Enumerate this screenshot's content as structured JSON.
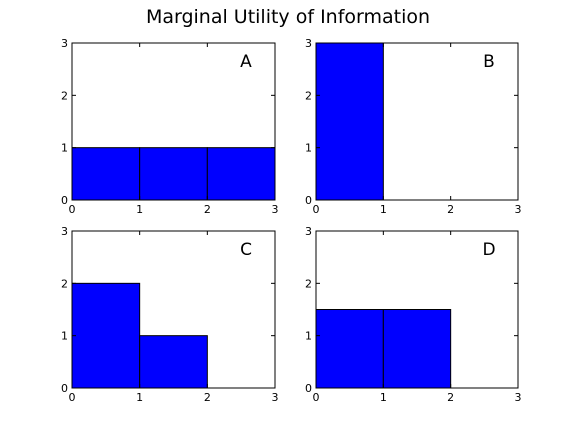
{
  "figure": {
    "title": "Marginal Utility of Information",
    "bar_color": "#0000ff",
    "edge_color": "#000000"
  },
  "chart_data": [
    {
      "type": "bar",
      "panel": "A",
      "bins": [
        [
          0,
          1
        ],
        [
          1,
          2
        ],
        [
          2,
          3
        ]
      ],
      "values": [
        1,
        1,
        1
      ],
      "xlim": [
        0,
        3
      ],
      "ylim": [
        0,
        3
      ],
      "xticks": [
        "0",
        "1",
        "2",
        "3"
      ],
      "yticks": [
        "0",
        "1",
        "2",
        "3"
      ],
      "grid": false
    },
    {
      "type": "bar",
      "panel": "B",
      "bins": [
        [
          0,
          1
        ],
        [
          1,
          2
        ],
        [
          2,
          3
        ]
      ],
      "values": [
        3,
        0,
        0
      ],
      "xlim": [
        0,
        3
      ],
      "ylim": [
        0,
        3
      ],
      "xticks": [
        "0",
        "1",
        "2",
        "3"
      ],
      "yticks": [
        "0",
        "1",
        "2",
        "3"
      ],
      "grid": false
    },
    {
      "type": "bar",
      "panel": "C",
      "bins": [
        [
          0,
          1
        ],
        [
          1,
          2
        ],
        [
          2,
          3
        ]
      ],
      "values": [
        2,
        1,
        0
      ],
      "xlim": [
        0,
        3
      ],
      "ylim": [
        0,
        3
      ],
      "xticks": [
        "0",
        "1",
        "2",
        "3"
      ],
      "yticks": [
        "0",
        "1",
        "2",
        "3"
      ],
      "grid": false
    },
    {
      "type": "bar",
      "panel": "D",
      "bins": [
        [
          0,
          1
        ],
        [
          1,
          2
        ],
        [
          2,
          3
        ]
      ],
      "values": [
        1.5,
        1.5,
        0
      ],
      "xlim": [
        0,
        3
      ],
      "ylim": [
        0,
        3
      ],
      "xticks": [
        "0",
        "1",
        "2",
        "3"
      ],
      "yticks": [
        "0",
        "1",
        "2",
        "3"
      ],
      "grid": false
    }
  ]
}
